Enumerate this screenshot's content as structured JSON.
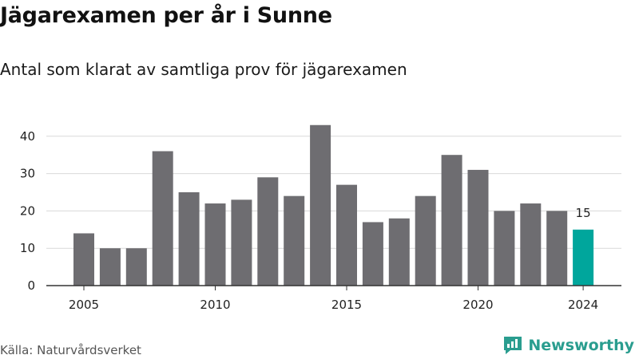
{
  "header": {
    "title": "Jägarexamen per år i Sunne",
    "subtitle": "Antal som klarat av samtliga prov för jägarexamen"
  },
  "footer": {
    "source": "Källa: Naturvårdsverket",
    "brand": "Newsworthy"
  },
  "colors": {
    "bar": "#6e6d71",
    "highlight": "#00a69c",
    "grid": "#d9d9d9",
    "axis": "#333333",
    "brand": "#2a9d8f"
  },
  "icons": {
    "brand_logo": "chat-bubble-bar-chart-icon"
  },
  "chart_data": {
    "type": "bar",
    "title": "Jägarexamen per år i Sunne",
    "subtitle": "Antal som klarat av samtliga prov för jägarexamen",
    "xlabel": "",
    "ylabel": "",
    "categories": [
      2005,
      2006,
      2007,
      2008,
      2009,
      2010,
      2011,
      2012,
      2013,
      2014,
      2015,
      2016,
      2017,
      2018,
      2019,
      2020,
      2021,
      2022,
      2023,
      2024
    ],
    "values": [
      14,
      10,
      10,
      36,
      25,
      22,
      23,
      29,
      24,
      43,
      27,
      17,
      18,
      24,
      35,
      31,
      20,
      22,
      20,
      15
    ],
    "highlight_category": 2024,
    "annotations": [
      {
        "category": 2024,
        "text": "15"
      }
    ],
    "x_ticks": [
      2005,
      2010,
      2015,
      2020,
      2024
    ],
    "y_ticks": [
      0,
      10,
      20,
      30,
      40
    ],
    "ylim": [
      0,
      45
    ],
    "grid": true,
    "legend": "none"
  }
}
